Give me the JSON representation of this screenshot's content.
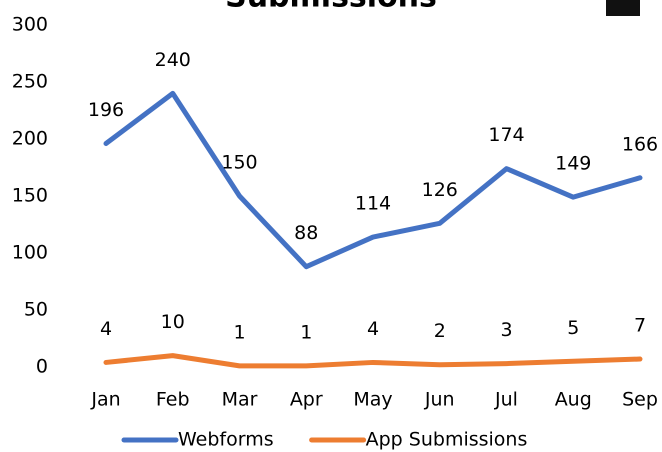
{
  "chart_data": {
    "type": "line",
    "title": "Submissions",
    "categories": [
      "Jan",
      "Feb",
      "Mar",
      "Apr",
      "May",
      "Jun",
      "Jul",
      "Aug",
      "Sep"
    ],
    "series": [
      {
        "name": "Webforms",
        "color": "#4472c4",
        "values": [
          196,
          240,
          150,
          88,
          114,
          126,
          174,
          149,
          166
        ]
      },
      {
        "name": "App Submissions",
        "color": "#ed7d31",
        "values": [
          4,
          10,
          1,
          1,
          4,
          2,
          3,
          5,
          7
        ]
      }
    ],
    "ylim": [
      0,
      300
    ],
    "yticks": [
      0,
      50,
      100,
      150,
      200,
      250,
      300
    ],
    "grid": false,
    "legend": "bottom"
  }
}
